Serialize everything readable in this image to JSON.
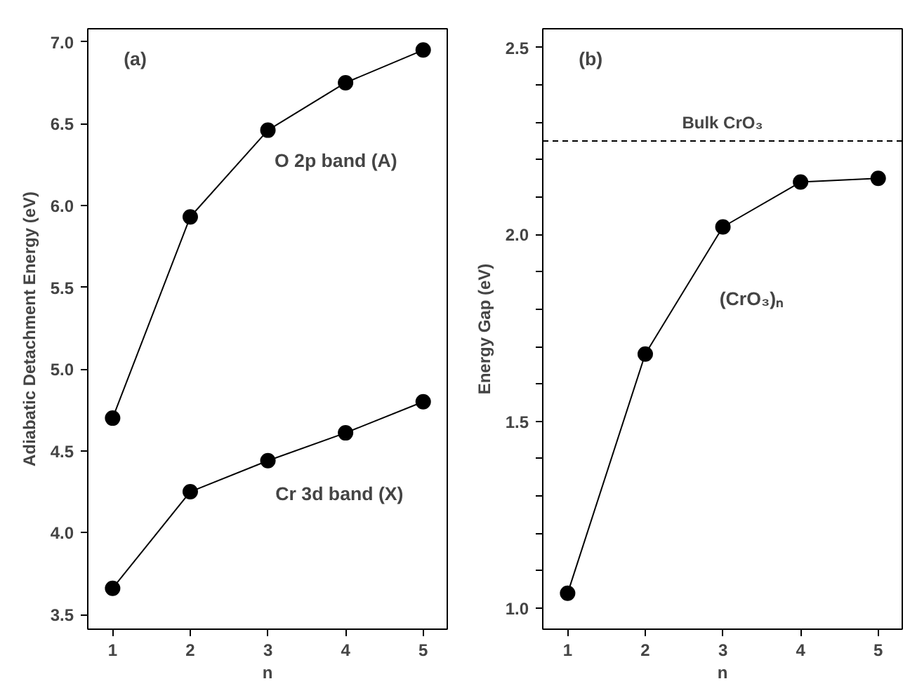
{
  "chart_data": [
    {
      "type": "line",
      "xlabel": "n",
      "ylabel": "Adiabatic Detachment Energy (eV)",
      "x": [
        1,
        2,
        3,
        4,
        5
      ],
      "series": [
        {
          "color": "#000000",
          "values": [
            4.7,
            5.93,
            6.46,
            6.75,
            6.95
          ]
        },
        {
          "color": "#000000",
          "values": [
            3.66,
            4.25,
            4.44,
            4.61,
            4.8
          ]
        }
      ],
      "xlim": [
        0.68,
        5.31
      ],
      "ylim": [
        3.41,
        7.08
      ],
      "xticks": [
        1,
        2,
        3,
        4,
        5
      ],
      "yticks": [
        3.5,
        {
          "value": 4.0,
          "label": "4.0"
        },
        4.5,
        {
          "value": 5.0,
          "label": "5.0"
        },
        5.5,
        {
          "value": 6.0,
          "label": "6.0"
        },
        6.5,
        {
          "value": 7.0,
          "label": "7.0"
        }
      ],
      "marker": "circle",
      "line_style": "solid",
      "grid": false,
      "annotations": [
        "(a)",
        "O 2p band (A)",
        "Cr 3d band (X)"
      ]
    },
    {
      "type": "line",
      "xlabel": "n",
      "ylabel": "Energy Gap (eV)",
      "x": [
        1,
        2,
        3,
        4,
        5
      ],
      "series": [
        {
          "color": "#000000",
          "values": [
            1.04,
            1.68,
            2.02,
            2.14,
            2.15
          ]
        }
      ],
      "xlim": [
        0.68,
        5.31
      ],
      "ylim": [
        0.944,
        2.55
      ],
      "xticks": [
        1,
        2,
        3,
        4,
        5
      ],
      "yticks": [
        {
          "value": 1.0,
          "label": "1.0"
        },
        {
          "value": 1.1,
          "label": null
        },
        {
          "value": 1.2,
          "label": null
        },
        {
          "value": 1.3,
          "label": null
        },
        {
          "value": 1.4,
          "label": null
        },
        1.5,
        {
          "value": 1.6,
          "label": null
        },
        {
          "value": 1.7,
          "label": null
        },
        {
          "value": 1.8,
          "label": null
        },
        {
          "value": 1.9,
          "label": null
        },
        {
          "value": 2.0,
          "label": "2.0"
        },
        {
          "value": 2.1,
          "label": null
        },
        {
          "value": 2.2,
          "label": null
        },
        {
          "value": 2.3,
          "label": null
        },
        {
          "value": 2.4,
          "label": null
        },
        2.5
      ],
      "marker": "circle",
      "line_style": "solid",
      "grid": false,
      "ref_lines": [
        {
          "axis": "y",
          "value": 2.25,
          "label": "Bulk CrO₃",
          "color": "#000000",
          "line_style": "dashed"
        }
      ],
      "annotations": [
        "(b)",
        "(CrO₃)ₙ"
      ]
    }
  ]
}
